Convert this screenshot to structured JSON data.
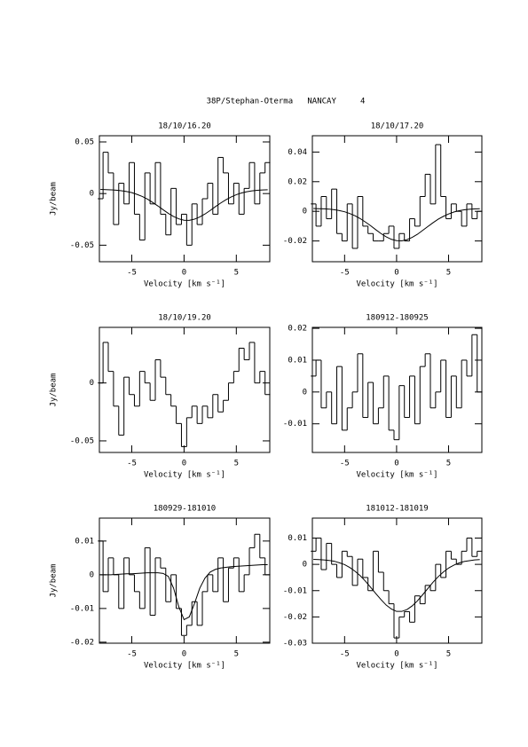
{
  "title": "38P/Stephan-Oterma   NANCAY     4",
  "chart_data": [
    {
      "type": "line",
      "subtitle": "18/10/16.20",
      "xlabel": "Velocity [km s⁻¹]",
      "ylabel": "Jy/beam",
      "xlim": [
        -8.1,
        8.2
      ],
      "ylim": [
        -0.066,
        0.056
      ],
      "xticks": [
        -5,
        0,
        5
      ],
      "yticks": [
        -0.05,
        0,
        0.05
      ],
      "x": [
        -8,
        -7.5,
        -7,
        -6.5,
        -6,
        -5.5,
        -5,
        -4.5,
        -4,
        -3.5,
        -3,
        -2.5,
        -2,
        -1.5,
        -1,
        -0.5,
        0,
        0.5,
        1,
        1.5,
        2,
        2.5,
        3,
        3.5,
        4,
        4.5,
        5,
        5.5,
        6,
        6.5,
        7,
        7.5,
        8
      ],
      "series": [
        {
          "color": "#000000",
          "drawstyle": "steps",
          "values": [
            -0.005,
            0.04,
            0.02,
            -0.03,
            0.01,
            -0.01,
            0.03,
            -0.02,
            -0.045,
            0.02,
            -0.01,
            0.03,
            -0.02,
            -0.04,
            0.005,
            -0.03,
            -0.02,
            -0.05,
            -0.01,
            -0.03,
            -0.005,
            0.01,
            -0.02,
            0.035,
            0.02,
            -0.01,
            0.01,
            -0.02,
            0.005,
            0.03,
            -0.01,
            0.02,
            0.03
          ]
        },
        {
          "color": "#000000",
          "drawstyle": "line",
          "values": [
            0.004,
            0.0038,
            0.0036,
            0.0033,
            0.0027,
            0.002,
            0.0009,
            -0.0008,
            -0.0028,
            -0.0054,
            -0.0086,
            -0.012,
            -0.0157,
            -0.0192,
            -0.0222,
            -0.0245,
            -0.0258,
            -0.0259,
            -0.0248,
            -0.0227,
            -0.0198,
            -0.0164,
            -0.0127,
            -0.0092,
            -0.006,
            -0.0033,
            -0.0011,
            0.0006,
            0.0018,
            0.0026,
            0.0032,
            0.0035,
            0.0037
          ]
        }
      ]
    },
    {
      "type": "line",
      "subtitle": "18/10/17.20",
      "xlabel": "Velocity [km s⁻¹]",
      "xlim": [
        -8.1,
        8.2
      ],
      "ylim": [
        -0.034,
        0.051
      ],
      "xticks": [
        -5,
        0,
        5
      ],
      "yticks": [
        -0.02,
        0,
        0.02,
        0.04
      ],
      "x": [
        -8,
        -7.5,
        -7,
        -6.5,
        -6,
        -5.5,
        -5,
        -4.5,
        -4,
        -3.5,
        -3,
        -2.5,
        -2,
        -1.5,
        -1,
        -0.5,
        0,
        0.5,
        1,
        1.5,
        2,
        2.5,
        3,
        3.5,
        4,
        4.5,
        5,
        5.5,
        6,
        6.5,
        7,
        7.5,
        8
      ],
      "series": [
        {
          "color": "#000000",
          "drawstyle": "steps",
          "values": [
            0.005,
            -0.01,
            0.01,
            -0.005,
            0.015,
            -0.015,
            -0.02,
            0.005,
            -0.025,
            0.01,
            -0.01,
            -0.015,
            -0.02,
            -0.02,
            -0.015,
            -0.01,
            -0.025,
            -0.015,
            -0.02,
            -0.005,
            -0.01,
            0.01,
            0.025,
            0.005,
            0.045,
            0.01,
            -0.005,
            0.005,
            0,
            -0.01,
            0.005,
            -0.005,
            0
          ]
        },
        {
          "color": "#000000",
          "drawstyle": "line",
          "values": [
            0.0019,
            0.0018,
            0.0017,
            0.0015,
            0.0011,
            0.0005,
            -0.0003,
            -0.0015,
            -0.003,
            -0.0049,
            -0.0072,
            -0.0097,
            -0.0124,
            -0.015,
            -0.0172,
            -0.0189,
            -0.0198,
            -0.0199,
            -0.0191,
            -0.0176,
            -0.0155,
            -0.0129,
            -0.0103,
            -0.0077,
            -0.0053,
            -0.0034,
            -0.0018,
            -0.0005,
            0.0004,
            0.001,
            0.0014,
            0.0016,
            0.0018
          ]
        }
      ]
    },
    {
      "type": "line",
      "subtitle": "18/10/19.20",
      "xlabel": "Velocity [km s⁻¹]",
      "ylabel": "Jy/beam",
      "xlim": [
        -8.1,
        8.2
      ],
      "ylim": [
        -0.06,
        0.048
      ],
      "xticks": [
        -5,
        0,
        5
      ],
      "yticks": [
        -0.05,
        0
      ],
      "x": [
        -8,
        -7.5,
        -7,
        -6.5,
        -6,
        -5.5,
        -5,
        -4.5,
        -4,
        -3.5,
        -3,
        -2.5,
        -2,
        -1.5,
        -1,
        -0.5,
        0,
        0.5,
        1,
        1.5,
        2,
        2.5,
        3,
        3.5,
        4,
        4.5,
        5,
        5.5,
        6,
        6.5,
        7,
        7.5,
        8
      ],
      "series": [
        {
          "color": "#000000",
          "drawstyle": "steps",
          "values": [
            0,
            0.035,
            0.01,
            -0.02,
            -0.045,
            0.005,
            -0.01,
            -0.02,
            0.01,
            0,
            -0.015,
            0.02,
            0.005,
            -0.01,
            -0.02,
            -0.035,
            -0.055,
            -0.03,
            -0.02,
            -0.035,
            -0.02,
            -0.03,
            -0.01,
            -0.025,
            -0.015,
            0,
            0.01,
            0.03,
            0.02,
            0.035,
            0,
            0.01,
            -0.01
          ]
        }
      ]
    },
    {
      "type": "line",
      "subtitle": "180912-180925",
      "xlabel": "Velocity [km s⁻¹]",
      "xlim": [
        -8.1,
        8.2
      ],
      "ylim": [
        -0.019,
        0.0203
      ],
      "xticks": [
        -5,
        0,
        5
      ],
      "yticks": [
        -0.01,
        0,
        0.01,
        0.02
      ],
      "x": [
        -8,
        -7.5,
        -7,
        -6.5,
        -6,
        -5.5,
        -5,
        -4.5,
        -4,
        -3.5,
        -3,
        -2.5,
        -2,
        -1.5,
        -1,
        -0.5,
        0,
        0.5,
        1,
        1.5,
        2,
        2.5,
        3,
        3.5,
        4,
        4.5,
        5,
        5.5,
        6,
        6.5,
        7,
        7.5,
        8
      ],
      "series": [
        {
          "color": "#000000",
          "drawstyle": "steps",
          "values": [
            0.005,
            0.01,
            -0.005,
            0,
            -0.01,
            0.008,
            -0.012,
            -0.005,
            0,
            0.012,
            -0.008,
            0.003,
            -0.01,
            -0.005,
            0.005,
            -0.012,
            -0.015,
            0.002,
            -0.008,
            0.005,
            -0.01,
            0.008,
            0.012,
            -0.005,
            0,
            0.01,
            -0.008,
            0.005,
            -0.005,
            0.01,
            0.005,
            0.018,
            0
          ]
        }
      ]
    },
    {
      "type": "line",
      "subtitle": "180929-181010",
      "xlabel": "Velocity [km s⁻¹]",
      "ylabel": "Jy/beam",
      "xlim": [
        -8.1,
        8.2
      ],
      "ylim": [
        -0.0203,
        0.0168
      ],
      "xticks": [
        -5,
        0,
        5
      ],
      "yticks": [
        -0.02,
        -0.01,
        0,
        0.01
      ],
      "x": [
        -8,
        -7.5,
        -7,
        -6.5,
        -6,
        -5.5,
        -5,
        -4.5,
        -4,
        -3.5,
        -3,
        -2.5,
        -2,
        -1.5,
        -1,
        -0.5,
        0,
        0.5,
        1,
        1.5,
        2,
        2.5,
        3,
        3.5,
        4,
        4.5,
        5,
        5.5,
        6,
        6.5,
        7,
        7.5,
        8
      ],
      "series": [
        {
          "color": "#000000",
          "drawstyle": "steps",
          "values": [
            0.01,
            -0.005,
            0.005,
            0,
            -0.01,
            0.005,
            0,
            -0.005,
            -0.01,
            0.008,
            -0.012,
            0.005,
            0.002,
            -0.008,
            0,
            -0.01,
            -0.018,
            -0.015,
            -0.008,
            -0.015,
            -0.005,
            0,
            -0.005,
            0.005,
            -0.008,
            0.002,
            0.005,
            -0.005,
            0,
            0.008,
            0.012,
            0.005,
            0
          ]
        },
        {
          "color": "#000000",
          "drawstyle": "line",
          "values": [
            0,
            0,
            0,
            0.0001,
            0.0002,
            0.0003,
            0.0003,
            0.0004,
            0.0005,
            0.0006,
            0.0006,
            0.0006,
            0.0004,
            -0.0005,
            -0.004,
            -0.0095,
            -0.0133,
            -0.0125,
            -0.0085,
            -0.004,
            -0.001,
            0.0008,
            0.0016,
            0.002,
            0.0022,
            0.0024,
            0.0025,
            0.0026,
            0.0027,
            0.0028,
            0.0029,
            0.003,
            0.003
          ]
        }
      ]
    },
    {
      "type": "line",
      "subtitle": "181012-181019",
      "xlabel": "Velocity [km s⁻¹]",
      "xlim": [
        -8.1,
        8.2
      ],
      "ylim": [
        -0.03,
        0.0176
      ],
      "xticks": [
        -5,
        0,
        5
      ],
      "yticks": [
        -0.03,
        -0.02,
        -0.01,
        0,
        0.01
      ],
      "x": [
        -8,
        -7.5,
        -7,
        -6.5,
        -6,
        -5.5,
        -5,
        -4.5,
        -4,
        -3.5,
        -3,
        -2.5,
        -2,
        -1.5,
        -1,
        -0.5,
        0,
        0.5,
        1,
        1.5,
        2,
        2.5,
        3,
        3.5,
        4,
        4.5,
        5,
        5.5,
        6,
        6.5,
        7,
        7.5,
        8
      ],
      "series": [
        {
          "color": "#000000",
          "drawstyle": "steps",
          "values": [
            0.005,
            0.01,
            -0.002,
            0.008,
            0,
            -0.005,
            0.005,
            0.003,
            -0.008,
            0.002,
            -0.005,
            -0.01,
            0.005,
            -0.003,
            -0.01,
            -0.015,
            -0.028,
            -0.02,
            -0.018,
            -0.022,
            -0.012,
            -0.015,
            -0.008,
            -0.01,
            0,
            -0.005,
            0.005,
            0.002,
            0,
            0.005,
            0.01,
            0.003,
            0.005
          ]
        },
        {
          "color": "#000000",
          "drawstyle": "line",
          "values": [
            0.0019,
            0.0018,
            0.0017,
            0.0015,
            0.0012,
            0.0006,
            -0.0001,
            -0.0012,
            -0.0026,
            -0.0043,
            -0.0064,
            -0.0087,
            -0.0111,
            -0.0134,
            -0.0155,
            -0.017,
            -0.0179,
            -0.0179,
            -0.0172,
            -0.0158,
            -0.0139,
            -0.0116,
            -0.0092,
            -0.0068,
            -0.0047,
            -0.0029,
            -0.0014,
            -0.0003,
            0.0005,
            0.0011,
            0.0014,
            0.0017,
            0.0018
          ]
        }
      ]
    }
  ]
}
